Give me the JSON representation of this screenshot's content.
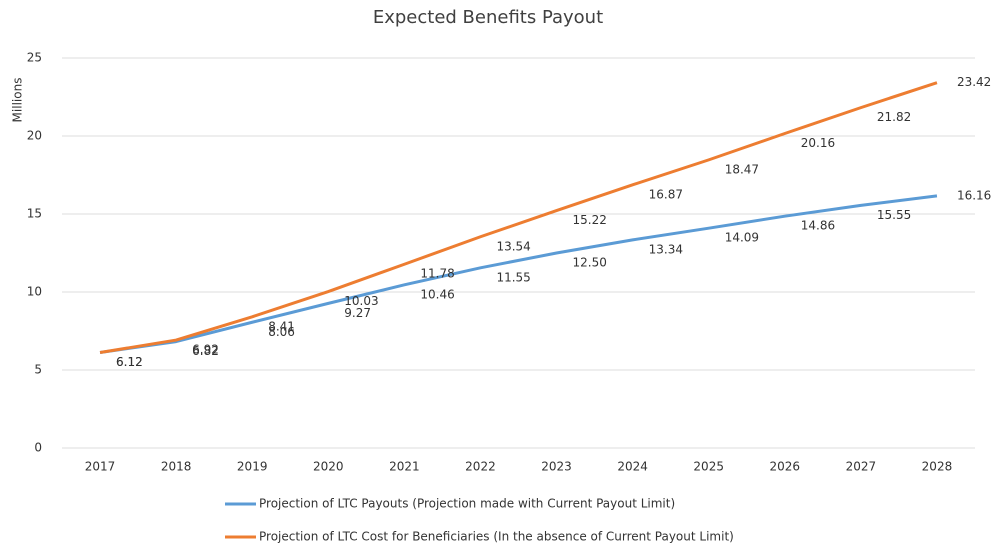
{
  "chart_data": {
    "type": "line",
    "title": "Expected Benefits Payout",
    "y_label": "Millions",
    "categories": [
      "2017",
      "2018",
      "2019",
      "2020",
      "2021",
      "2022",
      "2023",
      "2024",
      "2025",
      "2026",
      "2027",
      "2028"
    ],
    "series": [
      {
        "name": "Projection of LTC Payouts (Projection made with Current Payout Limit)",
        "color": "#5b9bd5",
        "values": [
          6.12,
          6.82,
          8.06,
          9.27,
          10.46,
          11.55,
          12.5,
          13.34,
          14.09,
          14.86,
          15.55,
          16.16
        ],
        "value_labels": [
          "6.12",
          "6.82",
          "8.06",
          "9.27",
          "10.46",
          "11.55",
          "12.50",
          "13.34",
          "14.09",
          "14.86",
          "15.55",
          "16.16"
        ]
      },
      {
        "name": "Projection of LTC Cost for Beneficiaries (In the absence of Current Payout Limit)",
        "color": "#ed7d31",
        "values": [
          6.12,
          6.92,
          8.41,
          10.03,
          11.78,
          13.54,
          15.22,
          16.87,
          18.47,
          20.16,
          21.82,
          23.42
        ],
        "value_labels": [
          "6.12",
          "6.92",
          "8.41",
          "10.03",
          "11.78",
          "13.54",
          "15.22",
          "16.87",
          "18.47",
          "20.16",
          "21.82",
          "23.42"
        ]
      }
    ],
    "ylim": [
      0,
      25
    ],
    "yticks": [
      0,
      5,
      10,
      15,
      20,
      25
    ],
    "grid": true,
    "legend": "bottom"
  }
}
